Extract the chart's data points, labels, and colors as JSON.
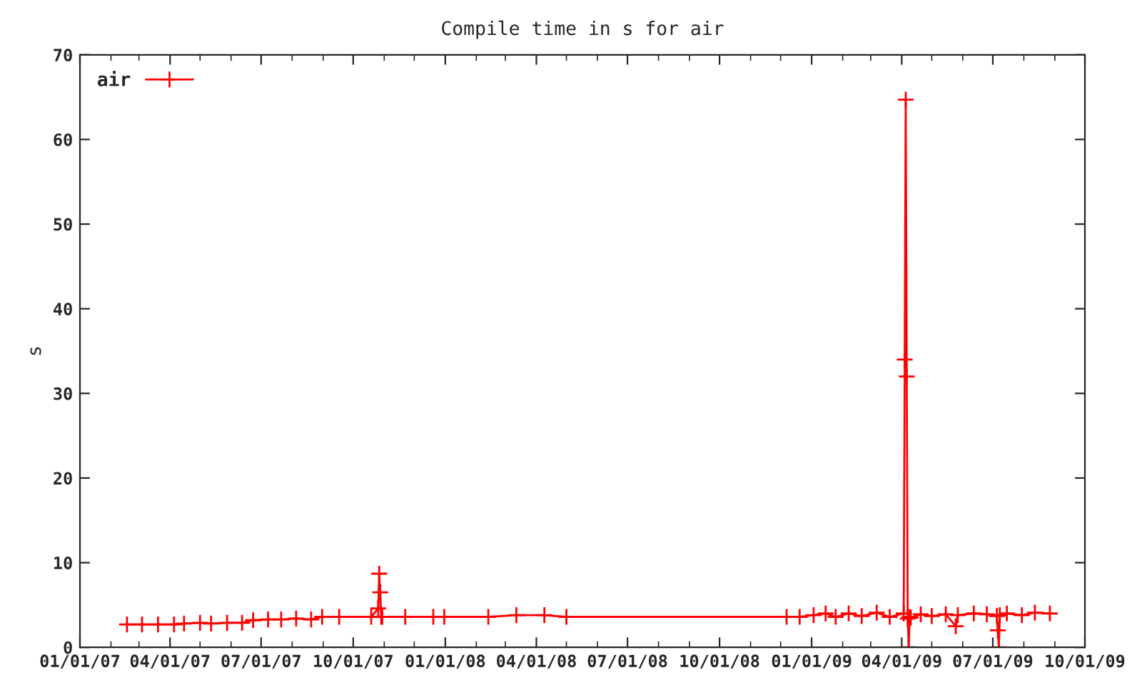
{
  "chart_data": {
    "type": "line",
    "title": "Compile time in s for air",
    "ylabel": "s",
    "x": [
      "2007-02-17",
      "2007-03-04",
      "2007-03-20",
      "2007-04-05",
      "2007-04-15",
      "2007-05-01",
      "2007-05-12",
      "2007-05-28",
      "2007-06-12",
      "2007-06-23",
      "2007-07-08",
      "2007-07-21",
      "2007-08-05",
      "2007-08-20",
      "2007-08-31",
      "2007-09-17",
      "2007-10-19",
      "2007-10-26",
      "2007-10-27",
      "2007-10-28",
      "2007-10-29",
      "2007-10-30",
      "2007-11-22",
      "2007-12-20",
      "2007-12-31",
      "2008-02-13",
      "2008-03-12",
      "2008-04-09",
      "2008-05-01",
      "2008-12-07",
      "2008-12-20",
      "2009-01-03",
      "2009-01-15",
      "2009-01-25",
      "2009-02-07",
      "2009-02-20",
      "2009-03-07",
      "2009-03-20",
      "2009-04-03",
      "2009-04-04",
      "2009-04-05",
      "2009-04-06",
      "2009-04-07",
      "2009-04-08",
      "2009-04-09",
      "2009-04-10",
      "2009-04-20",
      "2009-05-01",
      "2009-05-15",
      "2009-05-25",
      "2009-05-27",
      "2009-06-12",
      "2009-06-25",
      "2009-07-05",
      "2009-07-06",
      "2009-07-07",
      "2009-07-08",
      "2009-07-15",
      "2009-07-30",
      "2009-08-12",
      "2009-08-27"
    ],
    "series": [
      {
        "name": "air",
        "color": "#ff0000",
        "values": [
          2.7,
          2.7,
          2.7,
          2.7,
          2.8,
          2.9,
          2.8,
          2.9,
          2.9,
          3.2,
          3.3,
          3.3,
          3.4,
          3.3,
          3.6,
          3.6,
          3.6,
          4.6,
          8.7,
          6.5,
          3.6,
          3.6,
          3.6,
          3.6,
          3.6,
          3.6,
          3.8,
          3.8,
          3.6,
          3.6,
          3.6,
          3.8,
          4.0,
          3.6,
          4.0,
          3.7,
          4.1,
          3.6,
          4.0,
          34.0,
          64.7,
          32.0,
          3.4,
          0,
          3.6,
          3.5,
          3.9,
          3.7,
          3.9,
          2.5,
          3.8,
          4.0,
          3.9,
          3.7,
          2.0,
          0,
          3.8,
          4.0,
          3.8,
          4.1,
          4.0
        ]
      }
    ],
    "xlim": [
      "2007-01-01",
      "2009-10-01"
    ],
    "xticks": [
      {
        "value": "2007-01-01",
        "label": "01/01/07"
      },
      {
        "value": "2007-04-01",
        "label": "04/01/07"
      },
      {
        "value": "2007-07-01",
        "label": "07/01/07"
      },
      {
        "value": "2007-10-01",
        "label": "10/01/07"
      },
      {
        "value": "2008-01-01",
        "label": "01/01/08"
      },
      {
        "value": "2008-04-01",
        "label": "04/01/08"
      },
      {
        "value": "2008-07-01",
        "label": "07/01/08"
      },
      {
        "value": "2008-10-01",
        "label": "10/01/08"
      },
      {
        "value": "2009-01-01",
        "label": "01/01/09"
      },
      {
        "value": "2009-04-01",
        "label": "04/01/09"
      },
      {
        "value": "2009-07-01",
        "label": "07/01/09"
      },
      {
        "value": "2009-10-01",
        "label": "10/01/09"
      }
    ],
    "ylim": [
      0,
      70
    ],
    "yticks": [
      0,
      10,
      20,
      30,
      40,
      50,
      60,
      70
    ],
    "marker": "cross",
    "line_style": "solid",
    "legend": "top left",
    "grid": false
  }
}
